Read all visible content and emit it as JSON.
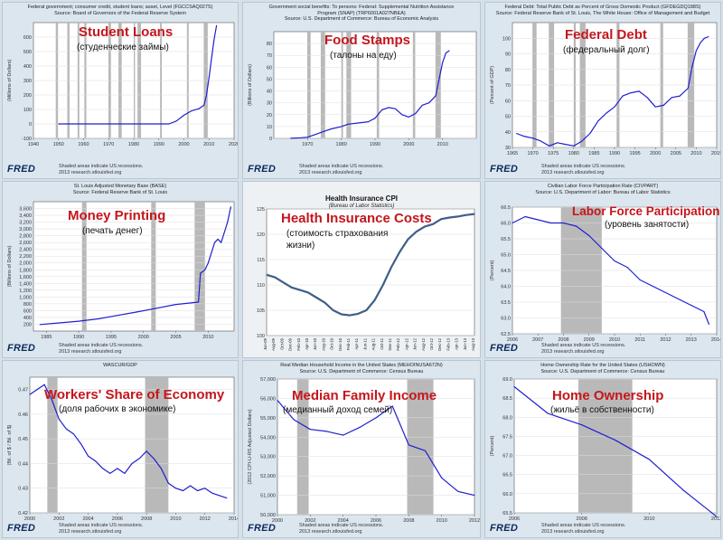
{
  "colors": {
    "line": "#1f1fcf",
    "recession": "#b9b9b9",
    "title": "#c4161c",
    "hc_line": "#3e5f86"
  },
  "brand": "FRED",
  "footer": {
    "line1": "Shaded areas indicate US recessions.",
    "line2": "2013 research.stlouisfed.org"
  },
  "panels": [
    {
      "id": "p1",
      "title": "Student Loans",
      "subtitle": "(студенческие займы)",
      "hdr1": "Federal government; consumer credit, student loans; asset, Level (FGCCSAQ027S)",
      "hdr2": "Source: Board of Governors of the Federal Reserve System",
      "hdr3": ""
    },
    {
      "id": "p2",
      "title": "Food Stamps",
      "subtitle": "(талоны на еду)",
      "hdr1": "Government social benefits: To persons: Federal: Supplemental Nutrition Assistance",
      "hdr2": "Program (SNAP) (TRP6001A027NBEA)",
      "hdr3": "Source: U.S. Department of Commerce: Bureau of Economic Analysis"
    },
    {
      "id": "p3",
      "title": "Federal Debt",
      "subtitle": "(федеральный долг)",
      "hdr1": "Federal Debt: Total Public Debt as Percent of Gross Domestic Product (GFDEGDQ188S)",
      "hdr2": "Source: Federal Reserve Bank of St. Louis, The White House: Office of Management and Budget",
      "hdr3": ""
    },
    {
      "id": "p4",
      "title": "Money Printing",
      "subtitle": "(печать денег)",
      "hdr1": "St. Louis Adjusted Monetary Base (BASE)",
      "hdr2": "Source: Federal Reserve Bank of St. Louis",
      "hdr3": ""
    },
    {
      "id": "p5",
      "title": "Health Insurance Costs",
      "subtitle": "(стоимость страхования",
      "subtitle2": "жизни)",
      "hdr1": "Health Insurance CPI",
      "hdr2": "(Bureau of Labor Statistics)",
      "hdr3": ""
    },
    {
      "id": "p6",
      "title": "Labor Force Participation",
      "subtitle": "(уровень занятости)",
      "hdr1": "Civilian Labor Force Participation Rate (CIVPART)",
      "hdr2": "Source: U.S. Department of Labor: Bureau of Labor Statistics",
      "hdr3": ""
    },
    {
      "id": "p7",
      "title": "Workers' Share of Economy",
      "subtitle": "(доля рабочих в экономике)",
      "hdr1": "WASCUR/GDP",
      "hdr2": "",
      "hdr3": ""
    },
    {
      "id": "p8",
      "title": "Median Family Income",
      "subtitle": "(медианный доход семей)",
      "hdr1": "Real Median Household Income in the United States (MEHOINUSA672N)",
      "hdr2": "Source: U.S. Department of Commerce: Census Bureau",
      "hdr3": ""
    },
    {
      "id": "p9",
      "title": "Home Ownership",
      "subtitle": "(жильё в собственности)",
      "hdr1": "Home Ownership Rate for the United States (USHOWN)",
      "hdr2": "Source: U.S. Department of Commerce: Census Bureau",
      "hdr3": ""
    }
  ],
  "chart_data": [
    {
      "type": "line",
      "title": "Student Loans",
      "ylabel": "(Millions of Dollars)",
      "xlim": [
        1940,
        2020
      ],
      "ylim": [
        -100,
        700
      ],
      "xticks": [
        1940,
        1950,
        1960,
        1970,
        1980,
        1990,
        2000,
        2010,
        2020
      ],
      "yticks": [
        -100,
        0,
        100,
        200,
        300,
        400,
        500,
        600
      ],
      "ytick_labels": [
        "-100",
        "0",
        "100",
        "200",
        "300",
        "400",
        "500",
        "600"
      ],
      "recessions": [
        [
          1948.9,
          1949.8
        ],
        [
          1953.5,
          1954.4
        ],
        [
          1957.6,
          1958.3
        ],
        [
          1960.3,
          1961.1
        ],
        [
          1969.9,
          1970.9
        ],
        [
          1973.9,
          1975.2
        ],
        [
          1980.0,
          1980.5
        ],
        [
          1981.5,
          1982.9
        ],
        [
          1990.5,
          1991.2
        ],
        [
          2001.2,
          2001.9
        ],
        [
          2007.9,
          2009.5
        ]
      ],
      "x": [
        1950,
        1955,
        1960,
        1965,
        1970,
        1975,
        1980,
        1985,
        1990,
        1994,
        1997,
        2000,
        2003,
        2006,
        2008,
        2009,
        2010,
        2011,
        2012,
        2013
      ],
      "y": [
        0,
        0,
        0,
        0,
        0,
        0,
        0,
        0,
        0,
        0,
        20,
        60,
        90,
        105,
        130,
        200,
        320,
        450,
        580,
        680
      ]
    },
    {
      "type": "line",
      "title": "Food Stamps",
      "ylabel": "(Billions of Dollars)",
      "xlim": [
        1960,
        2020
      ],
      "ylim": [
        0,
        90
      ],
      "xticks": [
        1970,
        1980,
        1990,
        2000,
        2010
      ],
      "yticks": [
        0,
        10,
        20,
        30,
        40,
        50,
        60,
        70,
        80
      ],
      "ytick_labels": [
        "0",
        "10",
        "20",
        "30",
        "40",
        "50",
        "60",
        "70",
        "80"
      ],
      "recessions": [
        [
          1969.9,
          1970.9
        ],
        [
          1973.9,
          1975.2
        ],
        [
          1980.0,
          1980.5
        ],
        [
          1981.5,
          1982.9
        ],
        [
          1990.5,
          1991.2
        ],
        [
          2001.2,
          2001.9
        ],
        [
          2007.9,
          2009.5
        ]
      ],
      "x": [
        1965,
        1968,
        1970,
        1972,
        1975,
        1977,
        1980,
        1982,
        1985,
        1988,
        1990,
        1992,
        1994,
        1996,
        1998,
        2000,
        2002,
        2004,
        2006,
        2008,
        2009,
        2010,
        2011,
        2012
      ],
      "y": [
        0.1,
        0.5,
        1,
        3,
        6,
        8,
        10,
        12,
        13,
        14,
        17,
        24,
        26,
        25,
        20,
        18,
        21,
        28,
        30,
        36,
        50,
        64,
        72,
        74
      ]
    },
    {
      "type": "line",
      "title": "Federal Debt",
      "ylabel": "(Percent of GDP)",
      "xlim": [
        1965,
        2015
      ],
      "ylim": [
        30,
        110
      ],
      "xticks": [
        1965,
        1970,
        1975,
        1980,
        1985,
        1990,
        1995,
        2000,
        2005,
        2010,
        2015
      ],
      "yticks": [
        30,
        40,
        50,
        60,
        70,
        80,
        90,
        100
      ],
      "ytick_labels": [
        "30",
        "40",
        "50",
        "60",
        "70",
        "80",
        "90",
        "100"
      ],
      "recessions": [
        [
          1969.9,
          1970.9
        ],
        [
          1973.9,
          1975.2
        ],
        [
          1980.0,
          1980.5
        ],
        [
          1981.5,
          1982.9
        ],
        [
          1990.5,
          1991.2
        ],
        [
          2001.2,
          2001.9
        ],
        [
          2007.9,
          2009.5
        ]
      ],
      "x": [
        1966,
        1968,
        1970,
        1972,
        1974,
        1976,
        1978,
        1980,
        1982,
        1984,
        1986,
        1988,
        1990,
        1992,
        1994,
        1996,
        1998,
        2000,
        2002,
        2004,
        2006,
        2008,
        2009,
        2010,
        2011,
        2012,
        2013
      ],
      "y": [
        39,
        37,
        36,
        34,
        31,
        33,
        32,
        31,
        34,
        39,
        47,
        52,
        56,
        63,
        65,
        66,
        62,
        56,
        57,
        62,
        63,
        68,
        82,
        92,
        97,
        100,
        101
      ]
    },
    {
      "type": "line",
      "title": "Money Printing",
      "ylabel": "(Billions of Dollars)",
      "xlim": [
        1983,
        2014
      ],
      "ylim": [
        0,
        3800
      ],
      "xticks": [
        1985,
        1990,
        1995,
        2000,
        2005,
        2010
      ],
      "yticks": [
        200,
        400,
        600,
        800,
        1000,
        1200,
        1400,
        1600,
        1800,
        2000,
        2200,
        2400,
        2600,
        2800,
        3000,
        3200,
        3400,
        3600
      ],
      "ytick_labels": [
        "200",
        "400",
        "600",
        "800",
        "1,000",
        "1,200",
        "1,400",
        "1,600",
        "1,800",
        "2,000",
        "2,200",
        "2,400",
        "2,600",
        "2,800",
        "3,000",
        "3,200",
        "3,400",
        "3,600"
      ],
      "recessions": [
        [
          1990.5,
          1991.2
        ],
        [
          2001.2,
          2001.9
        ],
        [
          2007.9,
          2009.5
        ]
      ],
      "x": [
        1984,
        1987,
        1990,
        1993,
        1996,
        1999,
        2002,
        2005,
        2008.5,
        2008.8,
        2009.5,
        2010,
        2011,
        2011.5,
        2012,
        2013,
        2013.5
      ],
      "y": [
        190,
        240,
        290,
        360,
        460,
        560,
        670,
        780,
        850,
        1700,
        1800,
        2000,
        2600,
        2700,
        2600,
        3200,
        3650
      ]
    },
    {
      "type": "line",
      "title": "Health Insurance CPI",
      "ylabel": "",
      "ylim": [
        100,
        125
      ],
      "yticks": [
        100,
        105,
        110,
        115,
        120,
        125
      ],
      "ytick_labels": [
        "100",
        "105",
        "110",
        "115",
        "120",
        "125"
      ],
      "categories": [
        "Jun-09",
        "Aug-09",
        "Oct-09",
        "Dec-09",
        "Feb-10",
        "Apr-10",
        "Jun-10",
        "Aug-10",
        "Oct-10",
        "Dec-10",
        "Feb-11",
        "Apr-11",
        "Jun-11",
        "Aug-11",
        "Oct-11",
        "Dec-11",
        "Feb-12",
        "Apr-12",
        "Jun-12",
        "Aug-12",
        "Oct-12",
        "Dec-12",
        "Feb-13",
        "Apr-13",
        "Jun-13",
        "Aug-13"
      ],
      "values": [
        112,
        111.5,
        110.5,
        109.5,
        109,
        108.5,
        107.5,
        106.5,
        105,
        104.2,
        104,
        104.3,
        105,
        107,
        110,
        113.5,
        116.5,
        119,
        120.5,
        121.5,
        122,
        123,
        123.3,
        123.5,
        123.8,
        124
      ]
    },
    {
      "type": "line",
      "title": "Labor Force Participation",
      "ylabel": "(Percent)",
      "xlim": [
        2006,
        2014
      ],
      "ylim": [
        62.5,
        66.5
      ],
      "xticks": [
        2006,
        2007,
        2008,
        2009,
        2010,
        2011,
        2012,
        2013,
        2014
      ],
      "yticks": [
        62.5,
        63.0,
        63.5,
        64.0,
        64.5,
        65.0,
        65.5,
        66.0,
        66.5
      ],
      "ytick_labels": [
        "62.5",
        "63.0",
        "63.5",
        "64.0",
        "64.5",
        "65.0",
        "65.5",
        "66.0",
        "66.5"
      ],
      "recessions": [
        [
          2007.9,
          2009.5
        ]
      ],
      "x": [
        2006,
        2006.5,
        2007,
        2007.5,
        2008,
        2008.5,
        2009,
        2009.5,
        2010,
        2010.5,
        2011,
        2011.5,
        2012,
        2012.5,
        2013,
        2013.5,
        2013.7
      ],
      "y": [
        66.0,
        66.2,
        66.1,
        66.0,
        66.0,
        65.9,
        65.6,
        65.2,
        64.8,
        64.6,
        64.2,
        64.0,
        63.8,
        63.6,
        63.4,
        63.2,
        62.8
      ]
    },
    {
      "type": "line",
      "title": "Workers' Share of Economy",
      "ylabel": "(Bil. of $ / Bil. of $)",
      "xlim": [
        2000,
        2014
      ],
      "ylim": [
        0.42,
        0.475
      ],
      "xticks": [
        2000,
        2002,
        2004,
        2006,
        2008,
        2010,
        2012,
        2014
      ],
      "yticks": [
        0.42,
        0.43,
        0.44,
        0.45,
        0.46,
        0.47
      ],
      "ytick_labels": [
        "0.42",
        "0.43",
        "0.44",
        "0.45",
        "0.46",
        "0.47"
      ],
      "recessions": [
        [
          2001.2,
          2001.9
        ],
        [
          2007.9,
          2009.5
        ]
      ],
      "x": [
        2000,
        2000.5,
        2001,
        2001.5,
        2002,
        2002.5,
        2003,
        2003.5,
        2004,
        2004.5,
        2005,
        2005.5,
        2006,
        2006.5,
        2007,
        2007.5,
        2008,
        2008.5,
        2009,
        2009.5,
        2010,
        2010.5,
        2011,
        2011.5,
        2012,
        2012.5,
        2013,
        2013.5
      ],
      "y": [
        0.468,
        0.47,
        0.472,
        0.466,
        0.458,
        0.454,
        0.452,
        0.448,
        0.443,
        0.441,
        0.438,
        0.436,
        0.438,
        0.436,
        0.44,
        0.442,
        0.445,
        0.442,
        0.438,
        0.432,
        0.43,
        0.429,
        0.431,
        0.429,
        0.43,
        0.428,
        0.427,
        0.426
      ]
    },
    {
      "type": "line",
      "title": "Median Family Income",
      "ylabel": "(2012 CPI-U-RS Adjusted Dollars)",
      "xlim": [
        2000,
        2012
      ],
      "ylim": [
        50000,
        57000
      ],
      "xticks": [
        2000,
        2002,
        2004,
        2006,
        2008,
        2010,
        2012
      ],
      "yticks": [
        50000,
        51000,
        52000,
        53000,
        54000,
        55000,
        56000,
        57000
      ],
      "ytick_labels": [
        "50,000",
        "51,000",
        "52,000",
        "53,000",
        "54,000",
        "55,000",
        "56,000",
        "57,000"
      ],
      "recessions": [
        [
          2001.2,
          2001.9
        ],
        [
          2007.9,
          2009.5
        ]
      ],
      "x": [
        2000,
        2001,
        2002,
        2003,
        2004,
        2005,
        2006,
        2007,
        2008,
        2009,
        2010,
        2011,
        2012
      ],
      "y": [
        55900,
        54900,
        54400,
        54300,
        54100,
        54500,
        55000,
        55600,
        53600,
        53300,
        51900,
        51200,
        51000
      ]
    },
    {
      "type": "line",
      "title": "Home Ownership",
      "ylabel": "(Percent)",
      "xlim": [
        2006,
        2012
      ],
      "ylim": [
        65.5,
        69.0
      ],
      "xticks": [
        2006,
        2008,
        2010,
        2012
      ],
      "yticks": [
        65.5,
        66.0,
        66.5,
        67.0,
        67.5,
        68.0,
        68.5,
        69.0
      ],
      "ytick_labels": [
        "65.5",
        "66.0",
        "66.5",
        "67.0",
        "67.5",
        "68.0",
        "68.5",
        "69.0"
      ],
      "recessions": [
        [
          2007.9,
          2009.5
        ]
      ],
      "x": [
        2006,
        2007,
        2008,
        2009,
        2010,
        2011,
        2012
      ],
      "y": [
        68.8,
        68.1,
        67.8,
        67.4,
        66.9,
        66.1,
        65.4
      ]
    }
  ]
}
